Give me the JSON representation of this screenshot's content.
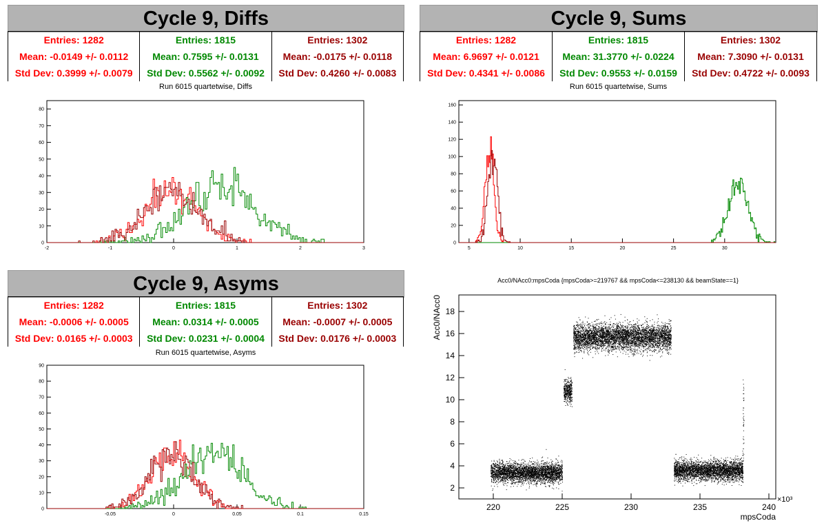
{
  "colors": {
    "red": "#ff0000",
    "green": "#008800",
    "darkred": "#990000",
    "header": "#b3b3b3"
  },
  "panels": {
    "diffs": {
      "title": "Cycle 9, Diffs",
      "subtitle": "Run 6015 quartetwise, Diffs",
      "stats": [
        {
          "entries": "Entries: 1282",
          "mean": "Mean: -0.0149 +/- 0.0112",
          "std": "Std Dev: 0.3999 +/- 0.0079"
        },
        {
          "entries": "Entries: 1815",
          "mean": "Mean: 0.7595 +/- 0.0131",
          "std": "Std Dev: 0.5562 +/- 0.0092"
        },
        {
          "entries": "Entries: 1302",
          "mean": "Mean: -0.0175 +/- 0.0118",
          "std": "Std Dev: 0.4260 +/- 0.0083"
        }
      ]
    },
    "sums": {
      "title": "Cycle 9, Sums",
      "subtitle": "Run 6015 quartetwise, Sums",
      "stats": [
        {
          "entries": "Entries: 1282",
          "mean": "Mean: 6.9697 +/- 0.0121",
          "std": "Std Dev: 0.4341 +/- 0.0086"
        },
        {
          "entries": "Entries: 1815",
          "mean": "Mean: 31.3770 +/- 0.0224",
          "std": "Std Dev: 0.9553 +/- 0.0159"
        },
        {
          "entries": "Entries: 1302",
          "mean": "Mean: 7.3090 +/- 0.0131",
          "std": "Std Dev: 0.4722 +/- 0.0093"
        }
      ]
    },
    "asyms": {
      "title": "Cycle 9, Asyms",
      "subtitle": "Run 6015 quartetwise, Asyms",
      "stats": [
        {
          "entries": "Entries: 1282",
          "mean": "Mean: -0.0006 +/- 0.0005",
          "std": "Std Dev: 0.0165 +/- 0.0003"
        },
        {
          "entries": "Entries: 1815",
          "mean": "Mean: 0.0314 +/- 0.0005",
          "std": "Std Dev: 0.0231 +/- 0.0004"
        },
        {
          "entries": "Entries: 1302",
          "mean": "Mean: -0.0007 +/- 0.0005",
          "std": "Std Dev: 0.0176 +/- 0.0003"
        }
      ]
    },
    "scatter": {
      "title": "Acc0/NAcc0:mpsCoda {mpsCoda>=219767 && mpsCoda<=238130 && beamState==1}"
    }
  },
  "chart_data": [
    {
      "type": "histogram",
      "title": "Run 6015 quartetwise, Diffs",
      "xlim": [
        -2.0,
        3.0
      ],
      "ylim": [
        0,
        85
      ],
      "xticks": [
        "-2",
        "-1",
        "0",
        "1",
        "2",
        "3"
      ],
      "yticks": [
        "0",
        "10",
        "20",
        "30",
        "40",
        "50",
        "60",
        "70",
        "80"
      ],
      "series": [
        {
          "color": "red",
          "entries": 1282,
          "mean": -0.0149,
          "std": 0.3999
        },
        {
          "color": "green",
          "entries": 1815,
          "mean": 0.7595,
          "std": 0.5562
        },
        {
          "color": "darkred",
          "entries": 1302,
          "mean": -0.0175,
          "std": 0.426
        }
      ]
    },
    {
      "type": "histogram",
      "title": "Run 6015 quartetwise, Sums",
      "xlim": [
        4.0,
        35.0
      ],
      "ylim": [
        0,
        165
      ],
      "xticks": [
        "5",
        "10",
        "15",
        "20",
        "25",
        "30"
      ],
      "yticks": [
        "0",
        "20",
        "40",
        "60",
        "80",
        "100",
        "120",
        "140",
        "160"
      ],
      "series": [
        {
          "color": "red",
          "entries": 1282,
          "mean": 6.9697,
          "std": 0.4341
        },
        {
          "color": "green",
          "entries": 1815,
          "mean": 31.377,
          "std": 0.9553
        },
        {
          "color": "darkred",
          "entries": 1302,
          "mean": 7.309,
          "std": 0.4722
        }
      ]
    },
    {
      "type": "histogram",
      "title": "Run 6015 quartetwise, Asyms",
      "xlim": [
        -0.1,
        0.15
      ],
      "ylim": [
        0,
        90
      ],
      "xticks": [
        "-0.05",
        "0",
        "0.05",
        "0.1",
        "0.15"
      ],
      "yticks": [
        "0",
        "10",
        "20",
        "30",
        "40",
        "50",
        "60",
        "70",
        "80",
        "90"
      ],
      "series": [
        {
          "color": "red",
          "entries": 1282,
          "mean": -0.0006,
          "std": 0.0165
        },
        {
          "color": "green",
          "entries": 1815,
          "mean": 0.0314,
          "std": 0.0231
        },
        {
          "color": "darkred",
          "entries": 1302,
          "mean": -0.0007,
          "std": 0.0176
        }
      ]
    },
    {
      "type": "scatter",
      "title": "Acc0/NAcc0:mpsCoda {mpsCoda>=219767 && mpsCoda<=238130 && beamState==1}",
      "xlabel": "mpsCoda",
      "ylabel": "Acc0/NAcc0",
      "x_multiplier": "×10³",
      "xlim": [
        217.5,
        240.5
      ],
      "ylim": [
        1.0,
        19.5
      ],
      "xticks": [
        "220",
        "225",
        "230",
        "235",
        "240"
      ],
      "yticks": [
        "2",
        "4",
        "6",
        "8",
        "10",
        "12",
        "14",
        "16",
        "18"
      ],
      "clusters": [
        {
          "x": [
            219.8,
            225.0
          ],
          "y_mean": 3.4,
          "y_std": 0.45
        },
        {
          "x": [
            225.1,
            225.7
          ],
          "y_mean": 10.8,
          "y_std": 0.55
        },
        {
          "x": [
            225.8,
            232.9
          ],
          "y_mean": 15.7,
          "y_std": 0.6
        },
        {
          "x": [
            233.1,
            238.1
          ],
          "y_mean": 3.6,
          "y_std": 0.45
        }
      ]
    }
  ]
}
